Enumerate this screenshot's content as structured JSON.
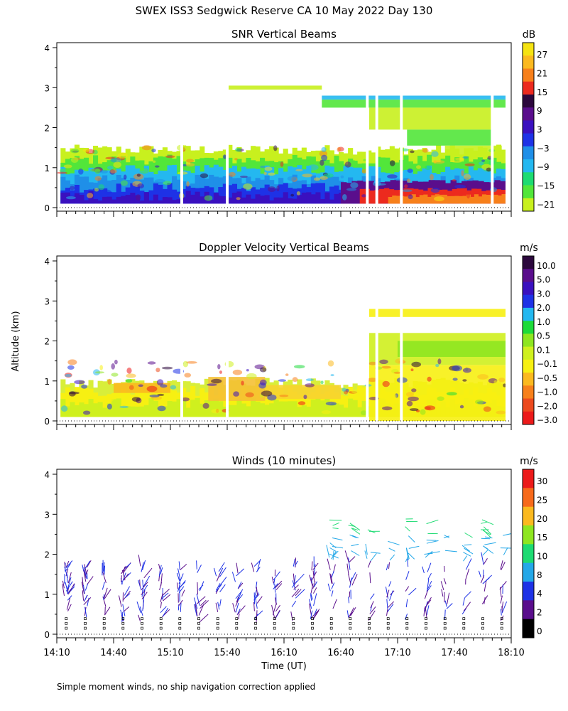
{
  "figure_title": "SWEX ISS3 Sedgwick Reserve CA  10 May 2022 Day 130",
  "shared_y_label": "Altitude (km)",
  "x_label": "Time (UT)",
  "x_tick_labels": [
    "14:10",
    "14:40",
    "15:10",
    "15:40",
    "16:10",
    "16:40",
    "17:10",
    "17:40",
    "18:10"
  ],
  "footnote": "Simple moment winds, no ship navigation correction applied",
  "chart_data": [
    {
      "type": "heatmap",
      "title": "SNR Vertical Beams",
      "units": "dB",
      "xlabel": "Time (UT)",
      "ylabel": "Altitude (km)",
      "x_range_min": [
        0,
        240
      ],
      "ylim": [
        0,
        4
      ],
      "y_ticks": [
        0,
        1,
        2,
        3,
        4
      ],
      "colorbar_labels": [
        "27",
        "21",
        "15",
        "9",
        "3",
        "−3",
        "−9",
        "−15",
        "−21"
      ],
      "colorbar_colors": [
        "#f5e312",
        "#fbb91f",
        "#f7801b",
        "#ec2a1e",
        "#2c083d",
        "#5a0e8c",
        "#3a10bf",
        "#1e32e6",
        "#1f8fe8",
        "#24b8f0",
        "#1ddb72",
        "#52e63a",
        "#c8f01e"
      ],
      "layers": [
        {
          "top_km": 1.45,
          "color": "#c8f01e"
        },
        {
          "top_km": 1.2,
          "color": "#52e63a"
        },
        {
          "top_km": 0.95,
          "color": "#24b8f0"
        },
        {
          "top_km": 0.7,
          "color": "#1f8fe8"
        },
        {
          "top_km": 0.5,
          "color": "#1e32e6"
        },
        {
          "top_km": 0.3,
          "color": "#3a10bf"
        }
      ],
      "late_layers": [
        {
          "from_min": 150,
          "top_km": 0.65,
          "color": "#5a0e8c"
        },
        {
          "from_min": 160,
          "top_km": 0.45,
          "color": "#ec2a1e"
        },
        {
          "from_min": 175,
          "top_km": 0.3,
          "color": "#f7801b"
        }
      ],
      "upper_patches": [
        {
          "t0": 90,
          "t1": 140,
          "z0": 2.95,
          "z1": 3.05,
          "color": "#c8f01e"
        },
        {
          "t0": 140,
          "t1": 240,
          "z0": 2.7,
          "z1": 2.8,
          "color": "#24b8f0"
        },
        {
          "t0": 140,
          "t1": 240,
          "z0": 2.5,
          "z1": 2.7,
          "color": "#52e63a"
        },
        {
          "t0": 165,
          "t1": 230,
          "z0": 1.95,
          "z1": 2.5,
          "color": "#c8f01e"
        },
        {
          "t0": 185,
          "t1": 230,
          "z0": 1.55,
          "z1": 1.95,
          "color": "#52e63a"
        },
        {
          "t0": 205,
          "t1": 235,
          "z0": 1.3,
          "z1": 1.55,
          "color": "#c8f01e"
        }
      ],
      "gaps_min": [
        66,
        90,
        164,
        169,
        182,
        230
      ]
    },
    {
      "type": "heatmap",
      "title": "Doppler Velocity Vertical Beams",
      "units": "m/s",
      "xlabel": "Time (UT)",
      "ylabel": "Altitude (km)",
      "x_range_min": [
        0,
        240
      ],
      "ylim": [
        0,
        4
      ],
      "y_ticks": [
        0,
        1,
        2,
        3,
        4
      ],
      "colorbar_labels": [
        "10.0",
        "5.0",
        "3.0",
        "2.0",
        "1.0",
        "0.5",
        "0.1",
        "−0.1",
        "−0.5",
        "−1.0",
        "−2.0",
        "−3.0"
      ],
      "colorbar_colors": [
        "#2c083d",
        "#5a0e8c",
        "#3a10bf",
        "#1e32e6",
        "#24b8f0",
        "#1ddb3a",
        "#8ee620",
        "#cff01e",
        "#f7f012",
        "#fbb91f",
        "#f7801b",
        "#ec4a1e",
        "#ec1a1a"
      ],
      "layers": [
        {
          "top_km": 0.95,
          "color": "#d8ee3a"
        },
        {
          "top_km": 0.75,
          "color": "#f7f012"
        },
        {
          "top_km": 0.45,
          "color": "#cff01e"
        }
      ],
      "patches": [
        {
          "t0": 30,
          "t1": 60,
          "z0": 0.7,
          "z1": 0.95,
          "color": "#fbb91f"
        },
        {
          "t0": 80,
          "t1": 110,
          "z0": 0.5,
          "z1": 1.1,
          "color": "#f5c034"
        },
        {
          "t0": 110,
          "t1": 150,
          "z0": 0.55,
          "z1": 0.9,
          "color": "#f7d330"
        },
        {
          "t0": 165,
          "t1": 240,
          "z0": 0.0,
          "z1": 1.4,
          "color": "#f7f012"
        },
        {
          "t0": 165,
          "t1": 240,
          "z0": 1.4,
          "z1": 2.2,
          "color": "#cff01e"
        },
        {
          "t0": 180,
          "t1": 240,
          "z0": 1.6,
          "z1": 2.0,
          "color": "#8ee620"
        },
        {
          "t0": 165,
          "t1": 240,
          "z0": 2.6,
          "z1": 2.8,
          "color": "#f7f012"
        }
      ],
      "gaps_min": [
        66,
        90,
        164,
        169,
        182
      ]
    },
    {
      "type": "wind-barbs",
      "title": "Winds (10 minutes)",
      "units": "m/s",
      "xlabel": "Time (UT)",
      "ylabel": "Altitude (km)",
      "x_range_min": [
        0,
        240
      ],
      "ylim": [
        0,
        4
      ],
      "y_ticks": [
        0,
        1,
        2,
        3,
        4
      ],
      "colorbar_labels": [
        "30",
        "25",
        "20",
        "15",
        "10",
        "8",
        "4",
        "2",
        "0"
      ],
      "colorbar_colors": [
        "#ec1a1a",
        "#f76a1b",
        "#fbb91f",
        "#8ee620",
        "#1ddb72",
        "#24a8e8",
        "#1e32e6",
        "#5a0e8c",
        "#000000"
      ],
      "profile_times_min": [
        5,
        15,
        25,
        35,
        45,
        55,
        65,
        75,
        85,
        95,
        105,
        115,
        125,
        135,
        145,
        155,
        165,
        175,
        185,
        195,
        205,
        215,
        225,
        235
      ]
    }
  ]
}
